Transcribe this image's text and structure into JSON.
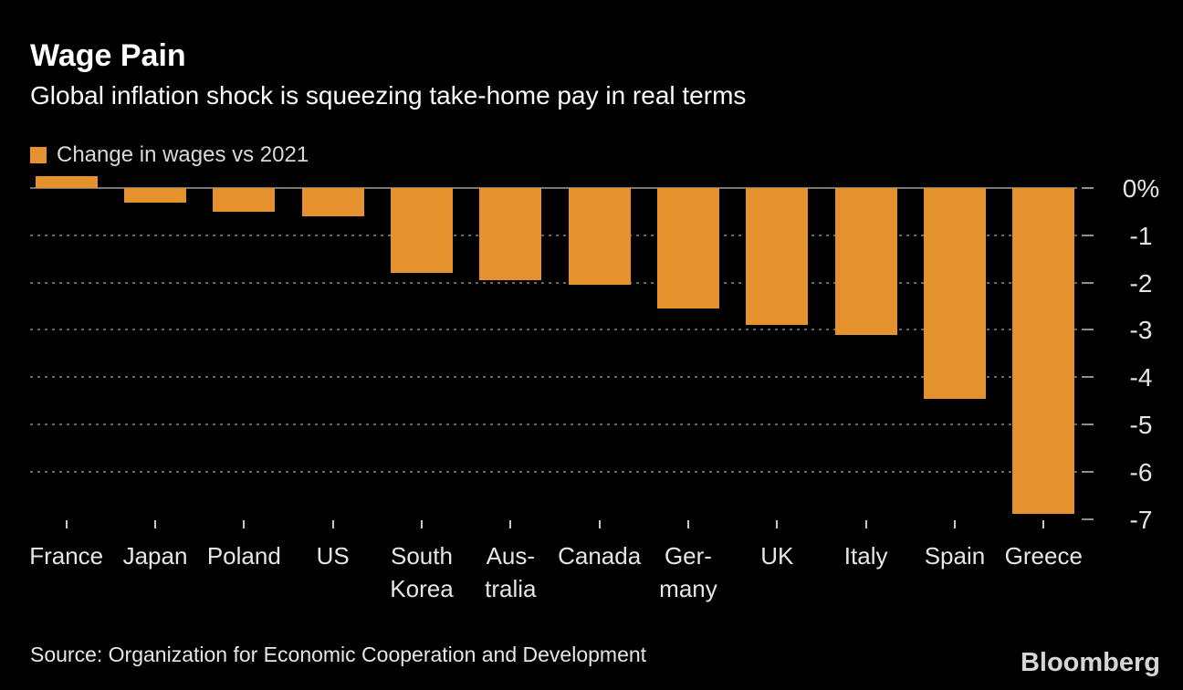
{
  "header": {
    "title": "Wage Pain",
    "subtitle": "Global inflation shock is squeezing take-home pay in real terms"
  },
  "legend": {
    "label": "Change in wages vs 2021"
  },
  "footer": {
    "source": "Source: Organization for Economic Cooperation and Development",
    "brand": "Bloomberg"
  },
  "colors": {
    "background": "#000000",
    "bar": "#E5912D",
    "title_text": "#FFFFFF",
    "axis_text": "#E4E4E2",
    "gridline": "#666664",
    "zero_line": "#767674"
  },
  "chart_data": {
    "type": "bar",
    "title": "Wage Pain",
    "subtitle": "Global inflation shock is squeezing take-home pay in real terms",
    "series_name": "Change in wages vs 2021",
    "unit": "%",
    "categories": [
      "France",
      "Japan",
      "Poland",
      "US",
      "South Korea",
      "Australia",
      "Canada",
      "Germany",
      "UK",
      "Italy",
      "Spain",
      "Greece"
    ],
    "values": [
      0.25,
      -0.3,
      -0.5,
      -0.6,
      -1.8,
      -1.95,
      -2.05,
      -2.55,
      -2.9,
      -3.1,
      -4.45,
      -6.9
    ],
    "category_label_lines": [
      [
        "France"
      ],
      [
        "Japan"
      ],
      [
        "Poland"
      ],
      [
        "US"
      ],
      [
        "South",
        "Korea"
      ],
      [
        "Aus-",
        "tralia"
      ],
      [
        "Canada"
      ],
      [
        "Ger-",
        "many"
      ],
      [
        "UK"
      ],
      [
        "Italy"
      ],
      [
        "Spain"
      ],
      [
        "Greece"
      ]
    ],
    "ytick_labels": [
      "0%",
      "-1",
      "-2",
      "-3",
      "-4",
      "-5",
      "-6",
      "-7"
    ],
    "ytick_values": [
      0,
      -1,
      -2,
      -3,
      -4,
      -5,
      -6,
      -7
    ],
    "ylim": [
      -7.05,
      0.3
    ],
    "xlabel": "",
    "ylabel": "",
    "gridlines": "horizontal dotted",
    "legend_position": "top-left",
    "bar_color": "#E5912D",
    "background_color": "#000000",
    "source": "Source: Organization for Economic Cooperation and Development"
  }
}
